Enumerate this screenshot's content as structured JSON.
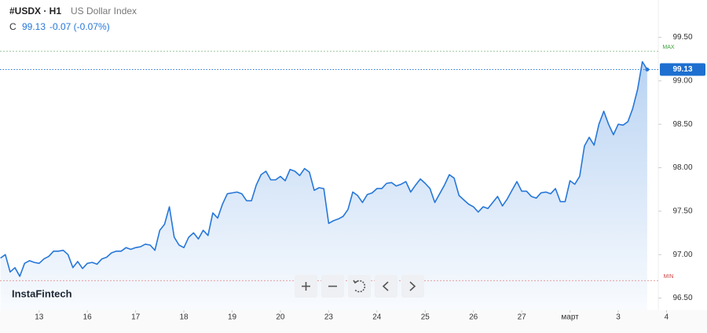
{
  "chart_data": {
    "type": "area-line",
    "header": {
      "symbol": "#USDX · H1",
      "name": "US Dollar Index",
      "close_label": "C",
      "close": 99.13,
      "change": "-0.07 (-0.07%)"
    },
    "brand": "InstaFintech",
    "color": "#2677d9",
    "x": [
      -0.8,
      -0.7,
      -0.6,
      -0.5,
      -0.4,
      -0.3,
      -0.2,
      -0.1,
      0,
      0.1,
      0.2,
      0.3,
      0.4,
      0.5,
      0.6,
      0.7,
      0.8,
      0.9,
      1,
      1.1,
      1.2,
      1.3,
      1.4,
      1.5,
      1.6,
      1.7,
      1.8,
      1.9,
      2,
      2.1,
      2.2,
      2.3,
      2.4,
      2.5,
      2.6,
      2.7,
      2.8,
      2.9,
      3,
      3.1,
      3.2,
      3.3,
      3.4,
      3.5,
      3.6,
      3.7,
      3.8,
      3.9,
      4,
      4.1,
      4.2,
      4.3,
      4.4,
      4.5,
      4.6,
      4.7,
      4.8,
      4.9,
      5,
      5.1,
      5.2,
      5.3,
      5.4,
      5.5,
      5.6,
      5.7,
      5.8,
      5.9,
      6,
      6.1,
      6.2,
      6.3,
      6.4,
      6.5,
      6.6,
      6.7,
      6.8,
      6.9,
      7,
      7.1,
      7.2,
      7.3,
      7.4,
      7.5,
      7.6,
      7.7,
      7.8,
      7.9,
      8,
      8.1,
      8.2,
      8.3,
      8.4,
      8.5,
      8.6,
      8.7,
      8.8,
      8.9,
      9,
      9.1,
      9.2,
      9.3,
      9.4,
      9.5,
      9.6,
      9.7,
      9.8,
      9.9,
      10,
      10.1,
      10.2,
      10.3,
      10.4,
      10.5,
      10.6,
      10.7,
      10.8,
      10.9,
      11,
      11.1,
      11.2,
      11.3,
      11.4,
      11.5,
      11.6,
      11.7,
      11.8,
      11.9,
      12,
      12.1,
      12.2,
      12.3,
      12.4,
      12.5,
      12.6
    ],
    "values": [
      96.96,
      97.0,
      96.8,
      96.85,
      96.75,
      96.9,
      96.93,
      96.91,
      96.9,
      96.95,
      96.98,
      97.04,
      97.04,
      97.05,
      97.0,
      96.85,
      96.92,
      96.84,
      96.9,
      96.91,
      96.89,
      96.95,
      96.97,
      97.02,
      97.04,
      97.04,
      97.08,
      97.06,
      97.08,
      97.09,
      97.12,
      97.11,
      97.05,
      97.28,
      97.35,
      97.55,
      97.2,
      97.11,
      97.08,
      97.2,
      97.25,
      97.18,
      97.28,
      97.22,
      97.48,
      97.42,
      97.58,
      97.7,
      97.71,
      97.72,
      97.7,
      97.62,
      97.62,
      97.8,
      97.92,
      97.96,
      97.86,
      97.86,
      97.9,
      97.85,
      97.98,
      97.96,
      97.91,
      97.99,
      97.95,
      97.74,
      97.77,
      97.76,
      97.36,
      97.39,
      97.41,
      97.44,
      97.52,
      97.72,
      97.68,
      97.6,
      97.69,
      97.71,
      97.76,
      97.76,
      97.82,
      97.83,
      97.79,
      97.81,
      97.84,
      97.72,
      97.8,
      97.87,
      97.82,
      97.76,
      97.6,
      97.7,
      97.8,
      97.92,
      97.88,
      97.68,
      97.63,
      97.58,
      97.55,
      97.49,
      97.55,
      97.53,
      97.6,
      97.67,
      97.56,
      97.64,
      97.74,
      97.84,
      97.73,
      97.73,
      97.67,
      97.65,
      97.71,
      97.72,
      97.7,
      97.76,
      97.61,
      97.61,
      97.85,
      97.81,
      97.9,
      98.25,
      98.35,
      98.26,
      98.5,
      98.65,
      98.5,
      98.38,
      98.5,
      98.49,
      98.53,
      98.68,
      98.9,
      99.22,
      99.13
    ],
    "last_price": 99.13,
    "max": {
      "label": "MAX",
      "value": 99.34
    },
    "min": {
      "label": "MIN",
      "value": 96.7
    },
    "xlim": [
      -0.81,
      12.83
    ],
    "xticks": [
      {
        "value": 0,
        "label": "13"
      },
      {
        "value": 1,
        "label": "16"
      },
      {
        "value": 2,
        "label": "17"
      },
      {
        "value": 3,
        "label": "18"
      },
      {
        "value": 4,
        "label": "19"
      },
      {
        "value": 5,
        "label": "20"
      },
      {
        "value": 6,
        "label": "23"
      },
      {
        "value": 7,
        "label": "24"
      },
      {
        "value": 8,
        "label": "25"
      },
      {
        "value": 9,
        "label": "26"
      },
      {
        "value": 10,
        "label": "27"
      },
      {
        "value": 11,
        "label": "март"
      },
      {
        "value": 12,
        "label": "3"
      },
      {
        "value": 13,
        "label": "4"
      }
    ],
    "ylim": [
      96.36,
      99.93
    ],
    "yticks": [
      {
        "value": 96.5,
        "label": "96.50"
      },
      {
        "value": 97,
        "label": "97.00"
      },
      {
        "value": 97.5,
        "label": "97.50"
      },
      {
        "value": 98,
        "label": "98.00"
      },
      {
        "value": 98.5,
        "label": "98.50"
      },
      {
        "value": 99,
        "label": "99.00"
      },
      {
        "value": 99.5,
        "label": "99.50"
      }
    ]
  }
}
